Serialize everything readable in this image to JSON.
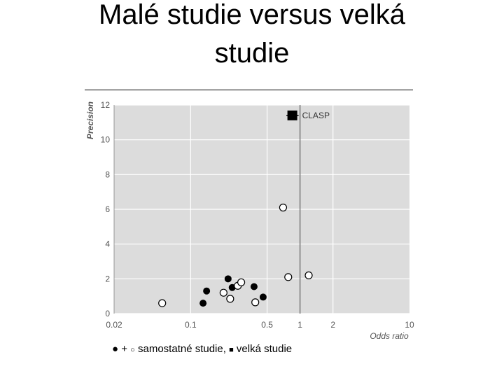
{
  "slide": {
    "title_line1": "Malé studie versus velká",
    "title_line2": "studie"
  },
  "caption": {
    "filled_marker": "●",
    "plus": "+",
    "open_marker": "○",
    "text1": "samostatné studie,",
    "square_marker": "■",
    "text2": "velká studie"
  },
  "chart_data": {
    "type": "scatter",
    "xscale": "log",
    "xlim": [
      0.02,
      10
    ],
    "ylim": [
      0,
      12
    ],
    "xticks": [
      0.02,
      0.1,
      0.5,
      1,
      2,
      10
    ],
    "xtick_labels": [
      "0.02",
      "0.1",
      "0.5",
      "1",
      "2",
      "10"
    ],
    "yticks": [
      0,
      2,
      4,
      6,
      8,
      10,
      12
    ],
    "ytick_labels": [
      "0",
      "2",
      "4",
      "6",
      "8",
      "10",
      "12"
    ],
    "xlabel": "Odds ratio",
    "ylabel": "Precision",
    "reference_line_x": 1,
    "grid": true,
    "colors": {
      "panel": "#dcdcdc",
      "grid": "#ffffff",
      "marker": "#000000",
      "open_fill": "#ffffff",
      "axis_text": "#555555"
    },
    "series": [
      {
        "marker": "filled-circle",
        "points": [
          {
            "x": 0.13,
            "y": 0.6
          },
          {
            "x": 0.14,
            "y": 1.3
          },
          {
            "x": 0.22,
            "y": 2.0
          },
          {
            "x": 0.24,
            "y": 1.5
          },
          {
            "x": 0.38,
            "y": 1.55
          },
          {
            "x": 0.46,
            "y": 0.95
          }
        ]
      },
      {
        "marker": "open-circle",
        "points": [
          {
            "x": 0.055,
            "y": 0.6
          },
          {
            "x": 0.2,
            "y": 1.2
          },
          {
            "x": 0.23,
            "y": 0.85
          },
          {
            "x": 0.27,
            "y": 1.6
          },
          {
            "x": 0.29,
            "y": 1.8
          },
          {
            "x": 0.39,
            "y": 0.65
          },
          {
            "x": 0.7,
            "y": 6.1
          },
          {
            "x": 0.78,
            "y": 2.1
          },
          {
            "x": 1.2,
            "y": 2.2
          }
        ]
      },
      {
        "marker": "square",
        "label": "CLASP",
        "points": [
          {
            "x": 0.85,
            "y": 11.4,
            "ci": [
              0.75,
              0.97
            ]
          }
        ]
      }
    ]
  }
}
